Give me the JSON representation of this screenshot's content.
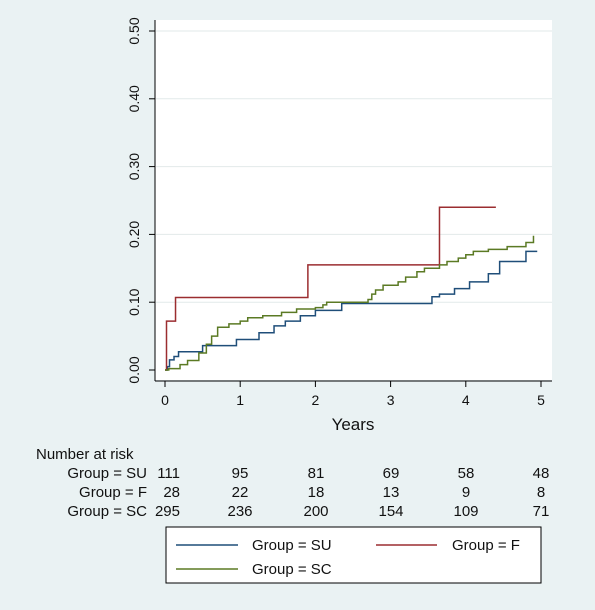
{
  "chart_data": {
    "type": "line",
    "subtype": "step (cumulative incidence)",
    "xlabel": "Years",
    "ylabel": "",
    "xlim": [
      0,
      5
    ],
    "ylim": [
      0,
      0.5
    ],
    "x_ticks": [
      0,
      1,
      2,
      3,
      4,
      5
    ],
    "x_tick_labels": [
      "0",
      "1",
      "2",
      "3",
      "4",
      "5"
    ],
    "y_ticks": [
      0,
      0.1,
      0.2,
      0.3,
      0.4,
      0.5
    ],
    "y_tick_labels": [
      "0.00",
      "0.10",
      "0.20",
      "0.30",
      "0.40",
      "0.50"
    ],
    "grid": "horizontal",
    "legend_position": "bottom",
    "colors": {
      "background": "#eaf2f3",
      "plot_area": "#ffffff",
      "grid": "#e2eaea",
      "SU": "#1f4e79",
      "F": "#9b2d30",
      "SC": "#5b7a24"
    },
    "series": [
      {
        "name": "Group = SU",
        "key": "SU",
        "points": [
          [
            0,
            0
          ],
          [
            0.03,
            0.005
          ],
          [
            0.06,
            0.015
          ],
          [
            0.12,
            0.02
          ],
          [
            0.18,
            0.027
          ],
          [
            0.5,
            0.036
          ],
          [
            0.95,
            0.045
          ],
          [
            1.25,
            0.055
          ],
          [
            1.45,
            0.065
          ],
          [
            1.6,
            0.072
          ],
          [
            1.8,
            0.08
          ],
          [
            2.0,
            0.088
          ],
          [
            2.35,
            0.098
          ],
          [
            3.55,
            0.108
          ],
          [
            3.65,
            0.112
          ],
          [
            3.85,
            0.12
          ],
          [
            4.05,
            0.13
          ],
          [
            4.3,
            0.142
          ],
          [
            4.45,
            0.16
          ],
          [
            4.8,
            0.175
          ],
          [
            4.95,
            0.175
          ]
        ]
      },
      {
        "name": "Group = F",
        "key": "F",
        "points": [
          [
            0,
            0
          ],
          [
            0.02,
            0.072
          ],
          [
            0.14,
            0.107
          ],
          [
            1.9,
            0.155
          ],
          [
            3.65,
            0.24
          ],
          [
            4.4,
            0.24
          ]
        ]
      },
      {
        "name": "Group = SC",
        "key": "SC",
        "points": [
          [
            0,
            0
          ],
          [
            0.05,
            0.002
          ],
          [
            0.2,
            0.008
          ],
          [
            0.3,
            0.014
          ],
          [
            0.45,
            0.025
          ],
          [
            0.55,
            0.038
          ],
          [
            0.62,
            0.05
          ],
          [
            0.7,
            0.063
          ],
          [
            0.85,
            0.068
          ],
          [
            1.0,
            0.072
          ],
          [
            1.1,
            0.077
          ],
          [
            1.3,
            0.08
          ],
          [
            1.55,
            0.085
          ],
          [
            1.75,
            0.09
          ],
          [
            2.0,
            0.092
          ],
          [
            2.1,
            0.096
          ],
          [
            2.15,
            0.1
          ],
          [
            2.7,
            0.104
          ],
          [
            2.75,
            0.112
          ],
          [
            2.8,
            0.118
          ],
          [
            2.9,
            0.125
          ],
          [
            3.1,
            0.13
          ],
          [
            3.2,
            0.137
          ],
          [
            3.35,
            0.145
          ],
          [
            3.45,
            0.15
          ],
          [
            3.65,
            0.155
          ],
          [
            3.75,
            0.16
          ],
          [
            3.9,
            0.165
          ],
          [
            4.0,
            0.17
          ],
          [
            4.1,
            0.175
          ],
          [
            4.3,
            0.178
          ],
          [
            4.55,
            0.182
          ],
          [
            4.8,
            0.188
          ],
          [
            4.9,
            0.198
          ]
        ]
      }
    ],
    "risk_table": {
      "title": "Number at risk",
      "rows": [
        {
          "label": "Group = SU",
          "values": [
            "111",
            "95",
            "81",
            "69",
            "58",
            "48"
          ]
        },
        {
          "label": "Group = F",
          "values": [
            "28",
            "22",
            "18",
            "13",
            "9",
            "8"
          ]
        },
        {
          "label": "Group = SC",
          "values": [
            "295",
            "236",
            "200",
            "154",
            "109",
            "71"
          ]
        }
      ]
    }
  }
}
